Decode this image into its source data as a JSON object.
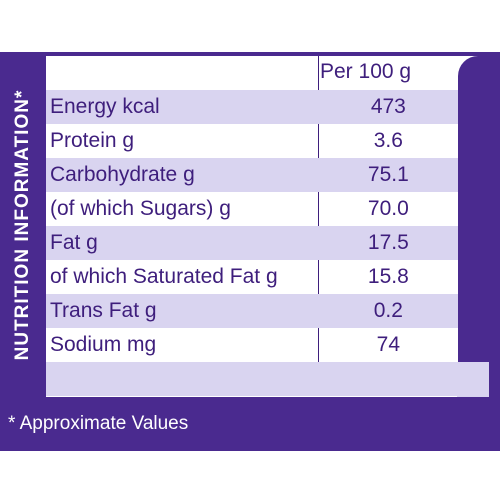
{
  "side_title": "NUTRITION INFORMATION*",
  "header": "Per 100 g",
  "rows": [
    {
      "label": "Energy kcal",
      "value": "473"
    },
    {
      "label": "Protein g",
      "value": "3.6"
    },
    {
      "label": "Carbohydrate g",
      "value": "75.1"
    },
    {
      "label": "(of which Sugars) g",
      "value": "70.0"
    },
    {
      "label": "Fat g",
      "value": "17.5"
    },
    {
      "label": "of which Saturated Fat g",
      "value": "15.8"
    },
    {
      "label": "Trans Fat g",
      "value": "0.2"
    },
    {
      "label": "Sodium mg",
      "value": "74"
    },
    {
      "label": "",
      "value": ""
    }
  ],
  "footer": "* Approximate Values",
  "colors": {
    "purple": "#4a2a8f",
    "lavender": "#d9d4f0",
    "text": "#3e1e7c"
  }
}
